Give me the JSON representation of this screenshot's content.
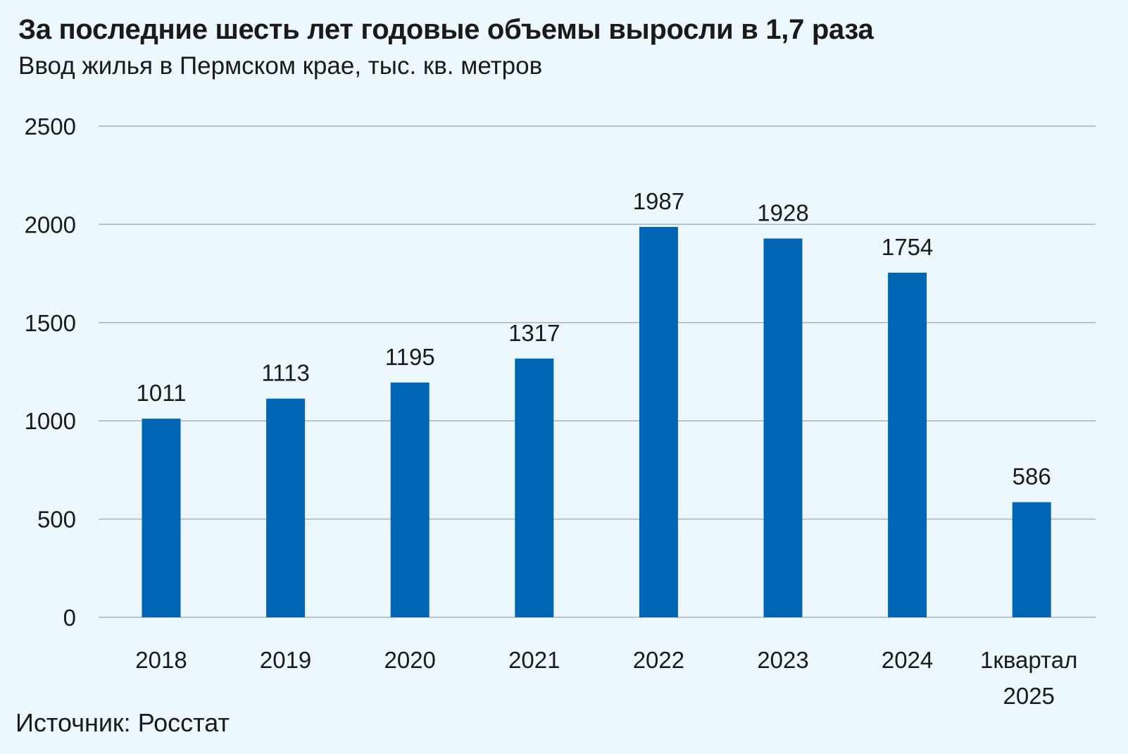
{
  "title": "За последние шесть лет годовые объемы выросли в 1,7 раза",
  "subtitle": "Ввод жилья в Пермском крае, тыс. кв. метров",
  "source": "Источник: Росстат",
  "colors": {
    "bar": "#0066b3",
    "grid": "#a9b4bc",
    "background": "#ecf7fe"
  },
  "chart_data": {
    "type": "bar",
    "categories": [
      "2018",
      "2019",
      "2020",
      "2021",
      "2022",
      "2023",
      "2024",
      "1квартал 2025"
    ],
    "category_lines": [
      [
        "2018"
      ],
      [
        "2019"
      ],
      [
        "2020"
      ],
      [
        "2021"
      ],
      [
        "2022"
      ],
      [
        "2023"
      ],
      [
        "2024"
      ],
      [
        "1квартал",
        "2025"
      ]
    ],
    "values": [
      1011,
      1113,
      1195,
      1317,
      1987,
      1928,
      1754,
      586
    ],
    "ylim": [
      0,
      2500
    ],
    "yticks": [
      0,
      500,
      1000,
      1500,
      2000,
      2500
    ],
    "grid": true,
    "legend": "none",
    "data_labels": true
  }
}
